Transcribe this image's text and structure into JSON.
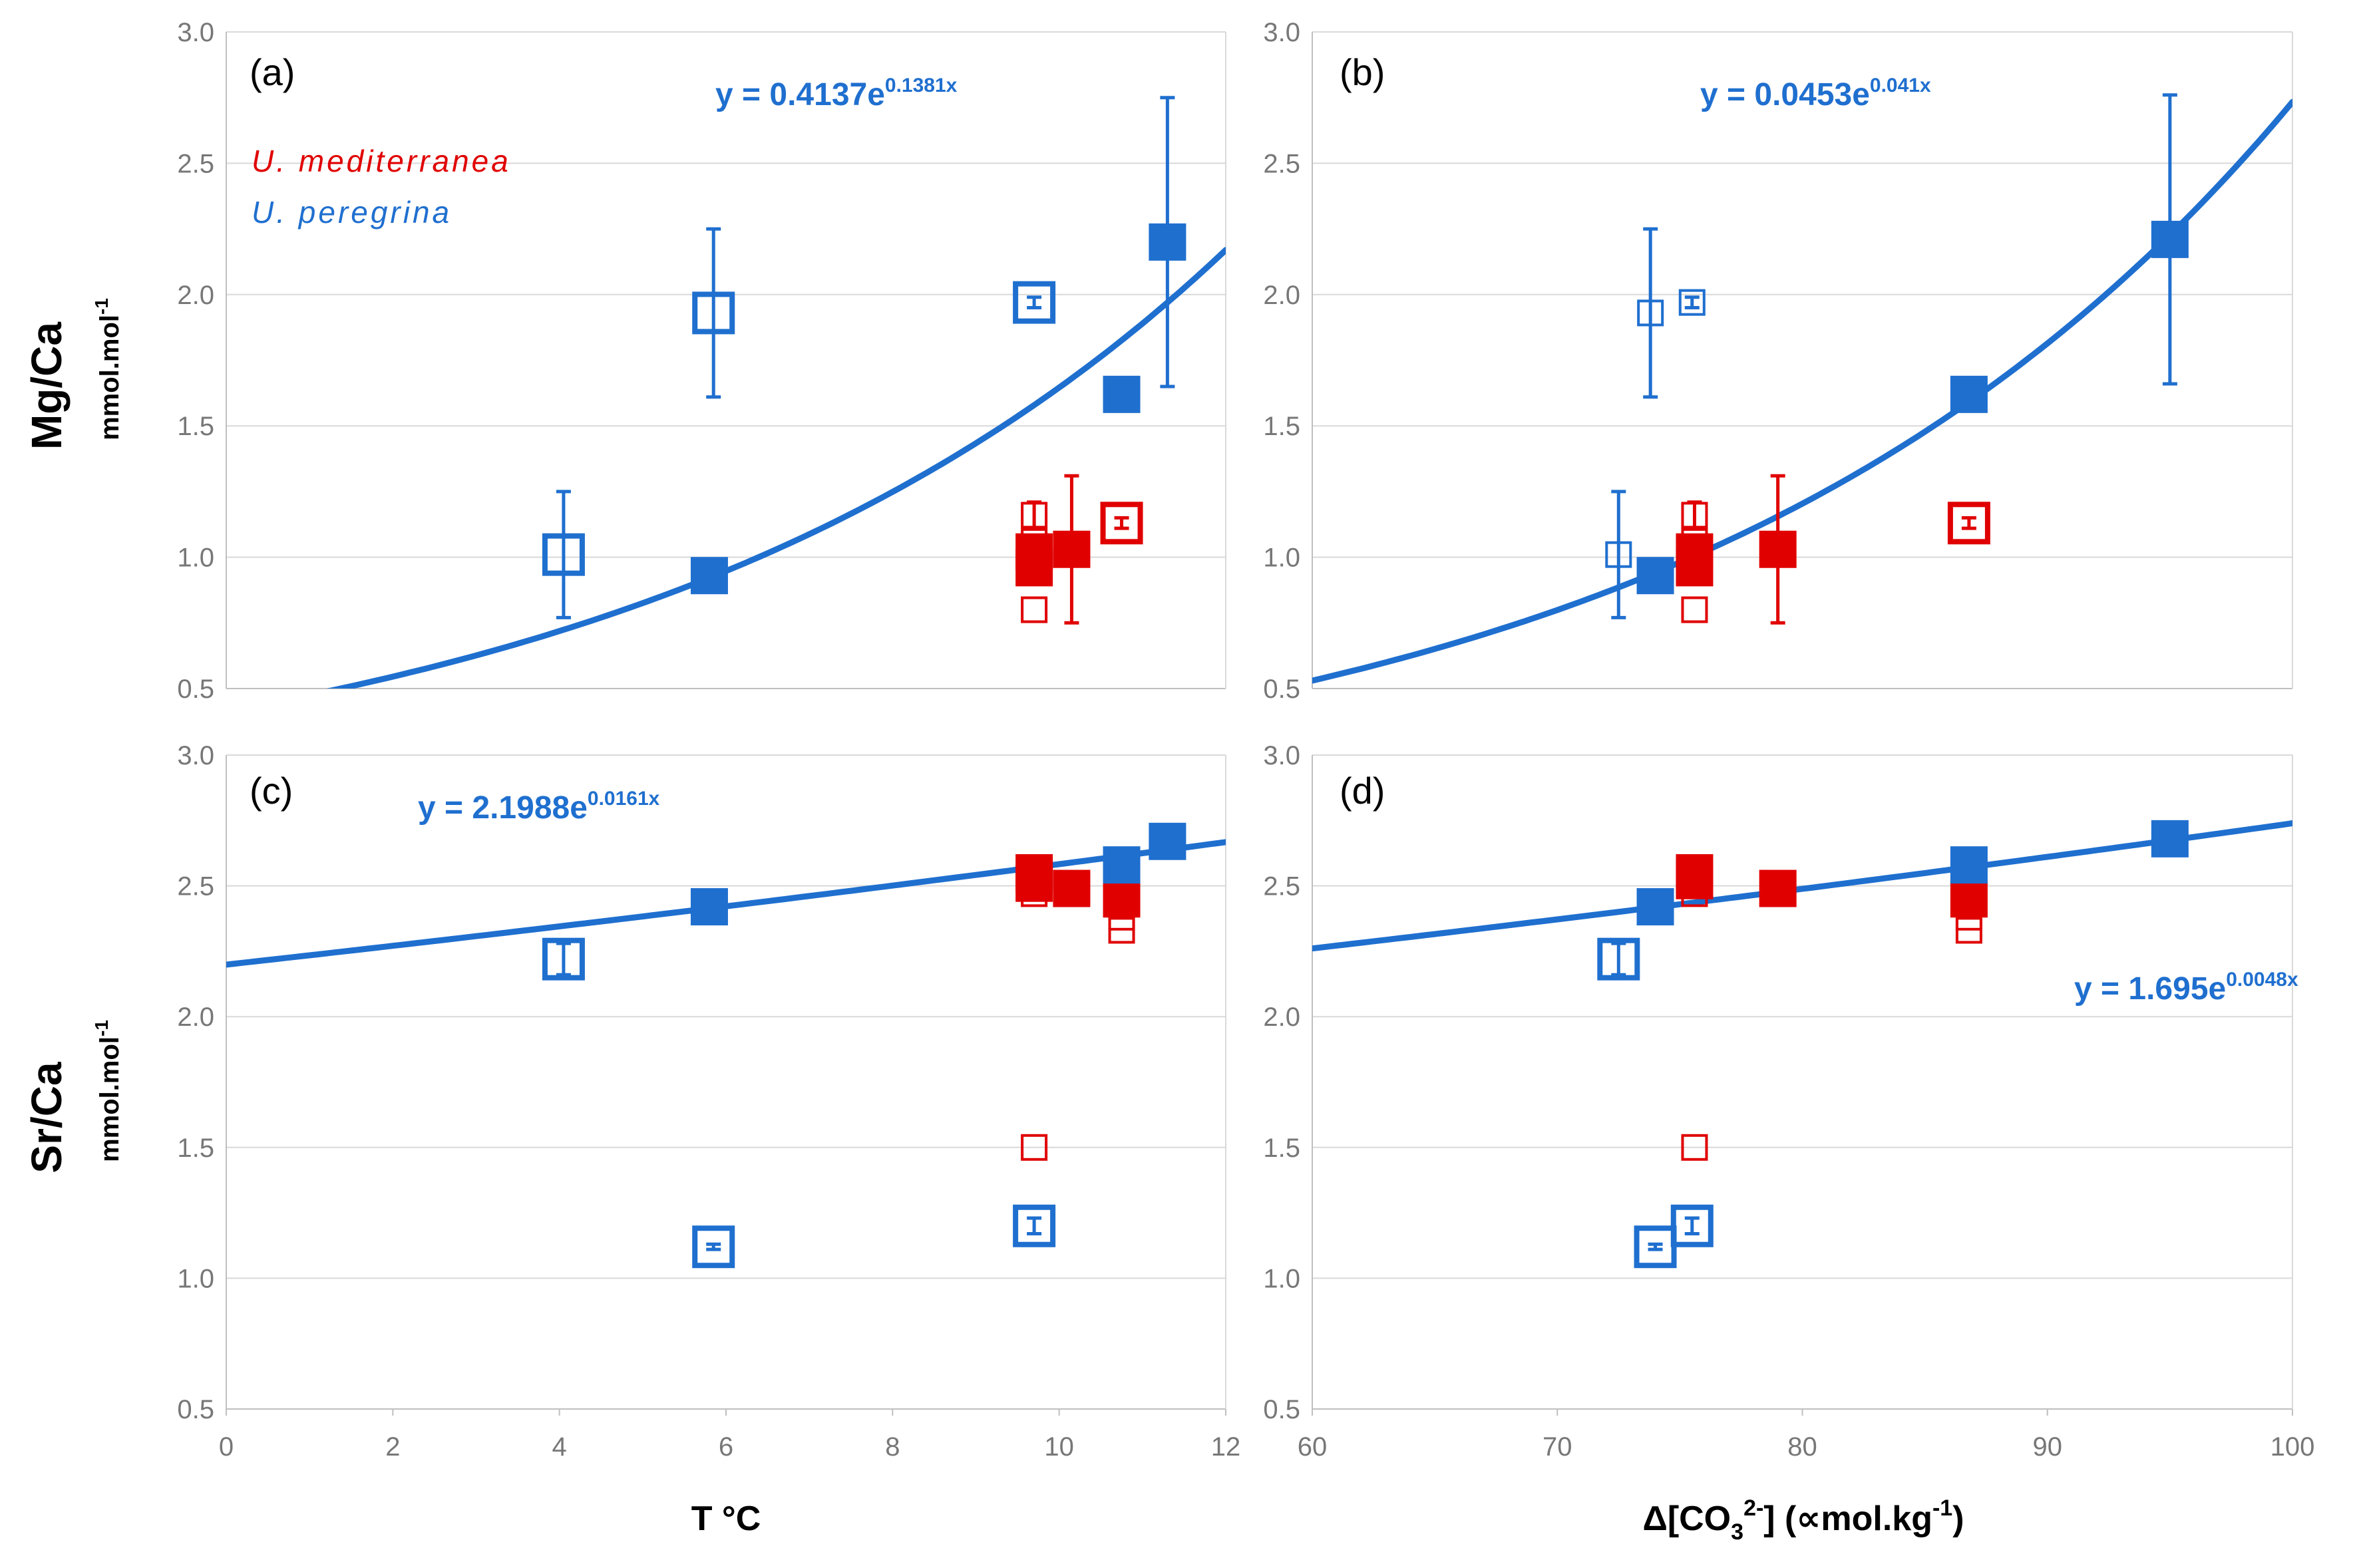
{
  "colors": {
    "blue": "#1f6fcf",
    "red": "#e00000",
    "grid": "#d9d9d9",
    "axis": "#bfbfbf",
    "tick": "#777777"
  },
  "labels": {
    "mg_ca": "Mg/Ca",
    "sr_ca": "Sr/Ca",
    "unit": "mmol.mol",
    "unit_exp": "-1",
    "x_temp": "T °C",
    "x_co3_delta": "Δ",
    "x_co3_open": "[CO",
    "x_co3_sub": "3",
    "x_co3_sup": "2-",
    "x_co3_mid": "] (∝mol.kg",
    "x_co3_exp": "-1",
    "x_co3_close": ")"
  },
  "legend": {
    "species_red": "U. mediterranea",
    "species_blue": "U. peregrina"
  },
  "chart_data": [
    {
      "id": "a",
      "type": "scatter",
      "panel_label": "(a)",
      "xlabel": "T °C",
      "ylabel": "Mg/Ca mmol.mol-1",
      "xlim": [
        0,
        12
      ],
      "ylim": [
        0.5,
        3.0
      ],
      "xticks": [
        "0",
        "2",
        "4",
        "6",
        "8",
        "10",
        "12"
      ],
      "yticks": [
        "0.5",
        "1.0",
        "1.5",
        "2.0",
        "2.5",
        "3.0"
      ],
      "equation": {
        "prefix": "y = 0.4137e",
        "exponent": "0.1381x"
      },
      "fit": {
        "a": 0.4137,
        "b": 0.1381,
        "x_range": [
          1.0,
          12
        ]
      },
      "series": [
        {
          "name": "U. peregrina (filled)",
          "color": "blue",
          "filled": true,
          "points": [
            {
              "x": 5.8,
              "y": 0.93
            },
            {
              "x": 10.75,
              "y": 1.62
            },
            {
              "x": 11.3,
              "y": 2.2,
              "err": 0.55
            }
          ]
        },
        {
          "name": "U. peregrina (open)",
          "color": "blue",
          "filled": false,
          "points": [
            {
              "x": 4.05,
              "y": 1.01,
              "err": 0.24
            },
            {
              "x": 5.85,
              "y": 1.93,
              "err": 0.32
            },
            {
              "x": 9.7,
              "y": 1.97,
              "err": 0.02
            }
          ]
        },
        {
          "name": "U. mediterranea (filled)",
          "color": "red",
          "filled": true,
          "points": [
            {
              "x": 9.7,
              "y": 1.02,
              "err": 0.06
            },
            {
              "x": 9.7,
              "y": 0.96
            },
            {
              "x": 10.15,
              "y": 1.03,
              "err": 0.28
            }
          ]
        },
        {
          "name": "U. mediterranea (open)",
          "color": "red",
          "filled": false,
          "points": [
            {
              "x": 9.7,
              "y": 1.16,
              "err": 0.05,
              "size": "small"
            },
            {
              "x": 9.7,
              "y": 1.06,
              "size": "small"
            },
            {
              "x": 9.7,
              "y": 0.8,
              "size": "small"
            },
            {
              "x": 10.75,
              "y": 1.13,
              "err": 0.02
            }
          ]
        }
      ]
    },
    {
      "id": "b",
      "type": "scatter",
      "panel_label": "(b)",
      "xlabel": "Δ[CO3 2-] (∝mol.kg-1)",
      "ylabel": "Mg/Ca mmol.mol-1",
      "xlim": [
        60,
        100
      ],
      "ylim": [
        0.5,
        3.0
      ],
      "xticks": [
        "60",
        "70",
        "80",
        "90",
        "100"
      ],
      "yticks": [
        "0.5",
        "1.0",
        "1.5",
        "2.0",
        "2.5",
        "3.0"
      ],
      "equation": {
        "prefix": "y = 0.0453e",
        "exponent": "0.041x"
      },
      "fit": {
        "a": 0.0453,
        "b": 0.041,
        "x_range": [
          60,
          100
        ]
      },
      "series": [
        {
          "name": "U. peregrina (filled)",
          "color": "blue",
          "filled": true,
          "points": [
            {
              "x": 74,
              "y": 0.93
            },
            {
              "x": 86.8,
              "y": 1.62
            },
            {
              "x": 95,
              "y": 2.21,
              "err": 0.55
            }
          ]
        },
        {
          "name": "U. peregrina (open)",
          "color": "blue",
          "filled": false,
          "points": [
            {
              "x": 72.5,
              "y": 1.01,
              "err": 0.24,
              "size": "small"
            },
            {
              "x": 73.8,
              "y": 1.93,
              "err": 0.32,
              "size": "small"
            },
            {
              "x": 75.5,
              "y": 1.97,
              "err": 0.02,
              "size": "small"
            }
          ]
        },
        {
          "name": "U. mediterranea (filled)",
          "color": "red",
          "filled": true,
          "points": [
            {
              "x": 75.6,
              "y": 1.02,
              "err": 0.06
            },
            {
              "x": 75.6,
              "y": 0.96
            },
            {
              "x": 79,
              "y": 1.03,
              "err": 0.28
            }
          ]
        },
        {
          "name": "U. mediterranea (open)",
          "color": "red",
          "filled": false,
          "points": [
            {
              "x": 75.6,
              "y": 1.16,
              "err": 0.05,
              "size": "small"
            },
            {
              "x": 75.6,
              "y": 1.06,
              "size": "small"
            },
            {
              "x": 75.6,
              "y": 0.8,
              "size": "small"
            },
            {
              "x": 86.8,
              "y": 1.13,
              "err": 0.02
            }
          ]
        }
      ]
    },
    {
      "id": "c",
      "type": "scatter",
      "panel_label": "(c)",
      "xlabel": "T °C",
      "ylabel": "Sr/Ca mmol.mol-1",
      "xlim": [
        0,
        12
      ],
      "ylim": [
        0.5,
        3.0
      ],
      "xticks": [
        "0",
        "2",
        "4",
        "6",
        "8",
        "10",
        "12"
      ],
      "yticks": [
        "0.5",
        "1.0",
        "1.5",
        "2.0",
        "2.5",
        "3.0"
      ],
      "equation": {
        "prefix": "y = 2.1988e",
        "exponent": "0.0161x"
      },
      "fit": {
        "a": 2.1988,
        "b": 0.0161,
        "x_range": [
          0,
          12
        ]
      },
      "series": [
        {
          "name": "U. peregrina (filled)",
          "color": "blue",
          "filled": true,
          "points": [
            {
              "x": 5.8,
              "y": 2.42
            },
            {
              "x": 10.75,
              "y": 2.58
            },
            {
              "x": 11.3,
              "y": 2.67
            }
          ]
        },
        {
          "name": "U. peregrina (open)",
          "color": "blue",
          "filled": false,
          "points": [
            {
              "x": 4.05,
              "y": 2.22,
              "err": 0.06
            },
            {
              "x": 5.85,
              "y": 1.12,
              "err": 0.01
            },
            {
              "x": 9.7,
              "y": 1.2,
              "err": 0.03
            }
          ]
        },
        {
          "name": "U. mediterranea (filled)",
          "color": "red",
          "filled": true,
          "points": [
            {
              "x": 9.7,
              "y": 2.55
            },
            {
              "x": 9.7,
              "y": 2.51
            },
            {
              "x": 10.15,
              "y": 2.49
            },
            {
              "x": 10.75,
              "y": 2.45
            }
          ]
        },
        {
          "name": "U. mediterranea (open)",
          "color": "red",
          "filled": false,
          "points": [
            {
              "x": 9.7,
              "y": 2.47,
              "size": "small"
            },
            {
              "x": 9.7,
              "y": 1.5,
              "size": "small"
            },
            {
              "x": 10.75,
              "y": 2.38,
              "size": "small"
            },
            {
              "x": 10.75,
              "y": 2.33,
              "size": "small"
            }
          ]
        }
      ]
    },
    {
      "id": "d",
      "type": "scatter",
      "panel_label": "(d)",
      "xlabel": "Δ[CO3 2-] (∝mol.kg-1)",
      "ylabel": "Sr/Ca mmol.mol-1",
      "xlim": [
        60,
        100
      ],
      "ylim": [
        0.5,
        3.0
      ],
      "xticks": [
        "60",
        "70",
        "80",
        "90",
        "100"
      ],
      "yticks": [
        "0.5",
        "1.0",
        "1.5",
        "2.0",
        "2.5",
        "3.0"
      ],
      "equation": {
        "prefix": "y = 1.695e",
        "exponent": "0.0048x"
      },
      "fit": {
        "a": 1.695,
        "b": 0.0048,
        "x_range": [
          60,
          100
        ]
      },
      "series": [
        {
          "name": "U. peregrina (filled)",
          "color": "blue",
          "filled": true,
          "points": [
            {
              "x": 74,
              "y": 2.42
            },
            {
              "x": 86.8,
              "y": 2.58
            },
            {
              "x": 95,
              "y": 2.68
            }
          ]
        },
        {
          "name": "U. peregrina (open)",
          "color": "blue",
          "filled": false,
          "points": [
            {
              "x": 72.5,
              "y": 2.22,
              "err": 0.06
            },
            {
              "x": 74,
              "y": 1.12,
              "err": 0.01
            },
            {
              "x": 75.5,
              "y": 1.2,
              "err": 0.03
            }
          ]
        },
        {
          "name": "U. mediterranea (filled)",
          "color": "red",
          "filled": true,
          "points": [
            {
              "x": 75.6,
              "y": 2.55
            },
            {
              "x": 75.6,
              "y": 2.52
            },
            {
              "x": 79,
              "y": 2.49
            },
            {
              "x": 86.8,
              "y": 2.45
            }
          ]
        },
        {
          "name": "U. mediterranea (open)",
          "color": "red",
          "filled": false,
          "points": [
            {
              "x": 75.6,
              "y": 2.47,
              "size": "small"
            },
            {
              "x": 75.6,
              "y": 1.5,
              "size": "small"
            },
            {
              "x": 86.8,
              "y": 2.38,
              "size": "small"
            },
            {
              "x": 86.8,
              "y": 2.33,
              "size": "small"
            }
          ]
        }
      ]
    }
  ]
}
